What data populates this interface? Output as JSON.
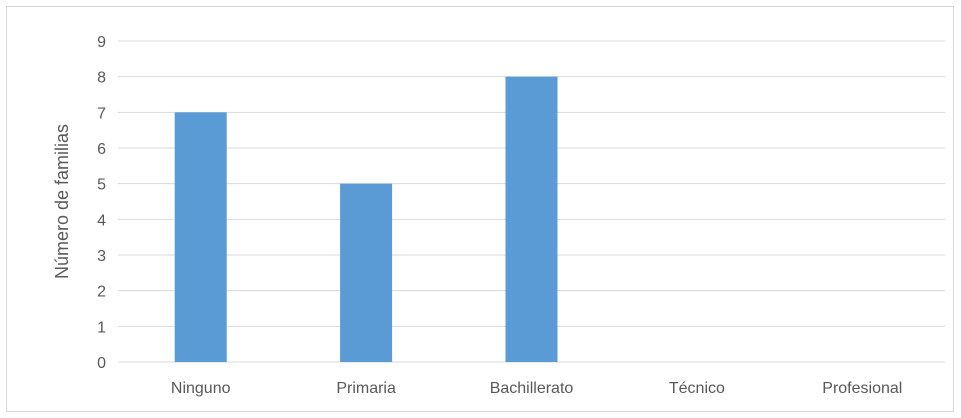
{
  "chart_data": {
    "type": "bar",
    "title": "",
    "xlabel": "",
    "ylabel": "Número de familias",
    "categories": [
      "Ninguno",
      "Primaria",
      "Bachillerato",
      "Técnico",
      "Profesional"
    ],
    "values": [
      7,
      5,
      8,
      0,
      0
    ],
    "ylim": [
      0,
      9
    ],
    "yticks": [
      "0",
      "1",
      "2",
      "3",
      "4",
      "5",
      "6",
      "7",
      "8",
      "9"
    ],
    "grid": true,
    "legend": "none",
    "colors": {
      "bar": "#5b9bd5",
      "grid": "#d9d9d9",
      "text": "#595959"
    }
  }
}
